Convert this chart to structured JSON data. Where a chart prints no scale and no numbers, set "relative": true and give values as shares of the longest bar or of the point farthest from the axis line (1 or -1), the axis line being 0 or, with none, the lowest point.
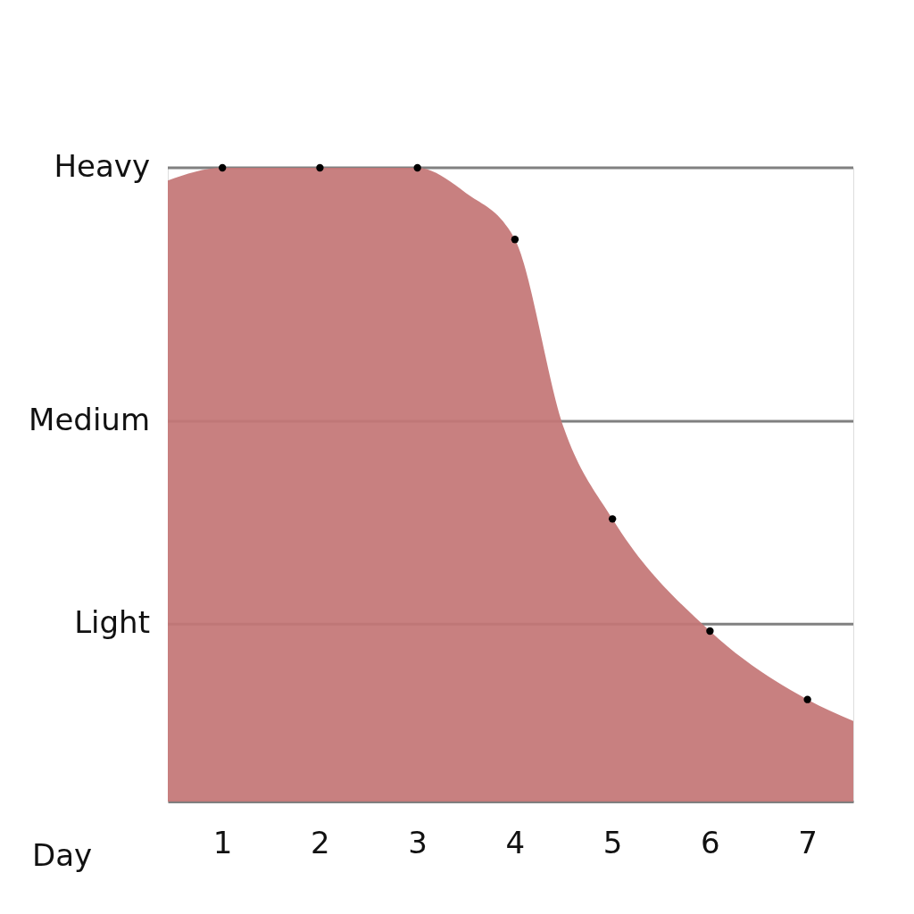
{
  "chart_data": {
    "type": "area",
    "relative": true,
    "xlabel": "Day",
    "xlim": [
      0.44,
      7.47
    ],
    "xticks": [
      1,
      2,
      3,
      4,
      5,
      6,
      7
    ],
    "ref_lines": [
      {
        "axis": "y",
        "value": 1,
        "label": "Heavy",
        "color": "#808080"
      },
      {
        "axis": "y",
        "value": 0.6,
        "label": "Medium",
        "color": "#808080"
      },
      {
        "axis": "y",
        "value": 0.28,
        "label": "Light",
        "color": "#808080"
      }
    ],
    "series": [
      {
        "color": "#c47676",
        "x": [
          0.44,
          1,
          2,
          3,
          3.5,
          4,
          4.5,
          5,
          6,
          7,
          7.47
        ],
        "values": [
          0.98,
          1.0,
          1.0,
          1.0,
          0.96,
          0.887,
          0.59,
          0.446,
          0.269,
          0.161,
          0.127
        ]
      },
      {
        "type": "scatter",
        "color": "#000000",
        "marker": "circle",
        "x": [
          1,
          2,
          3,
          4,
          5,
          6,
          7
        ],
        "values": [
          1.0,
          1.0,
          1.0,
          0.887,
          0.446,
          0.269,
          0.161
        ]
      }
    ]
  }
}
